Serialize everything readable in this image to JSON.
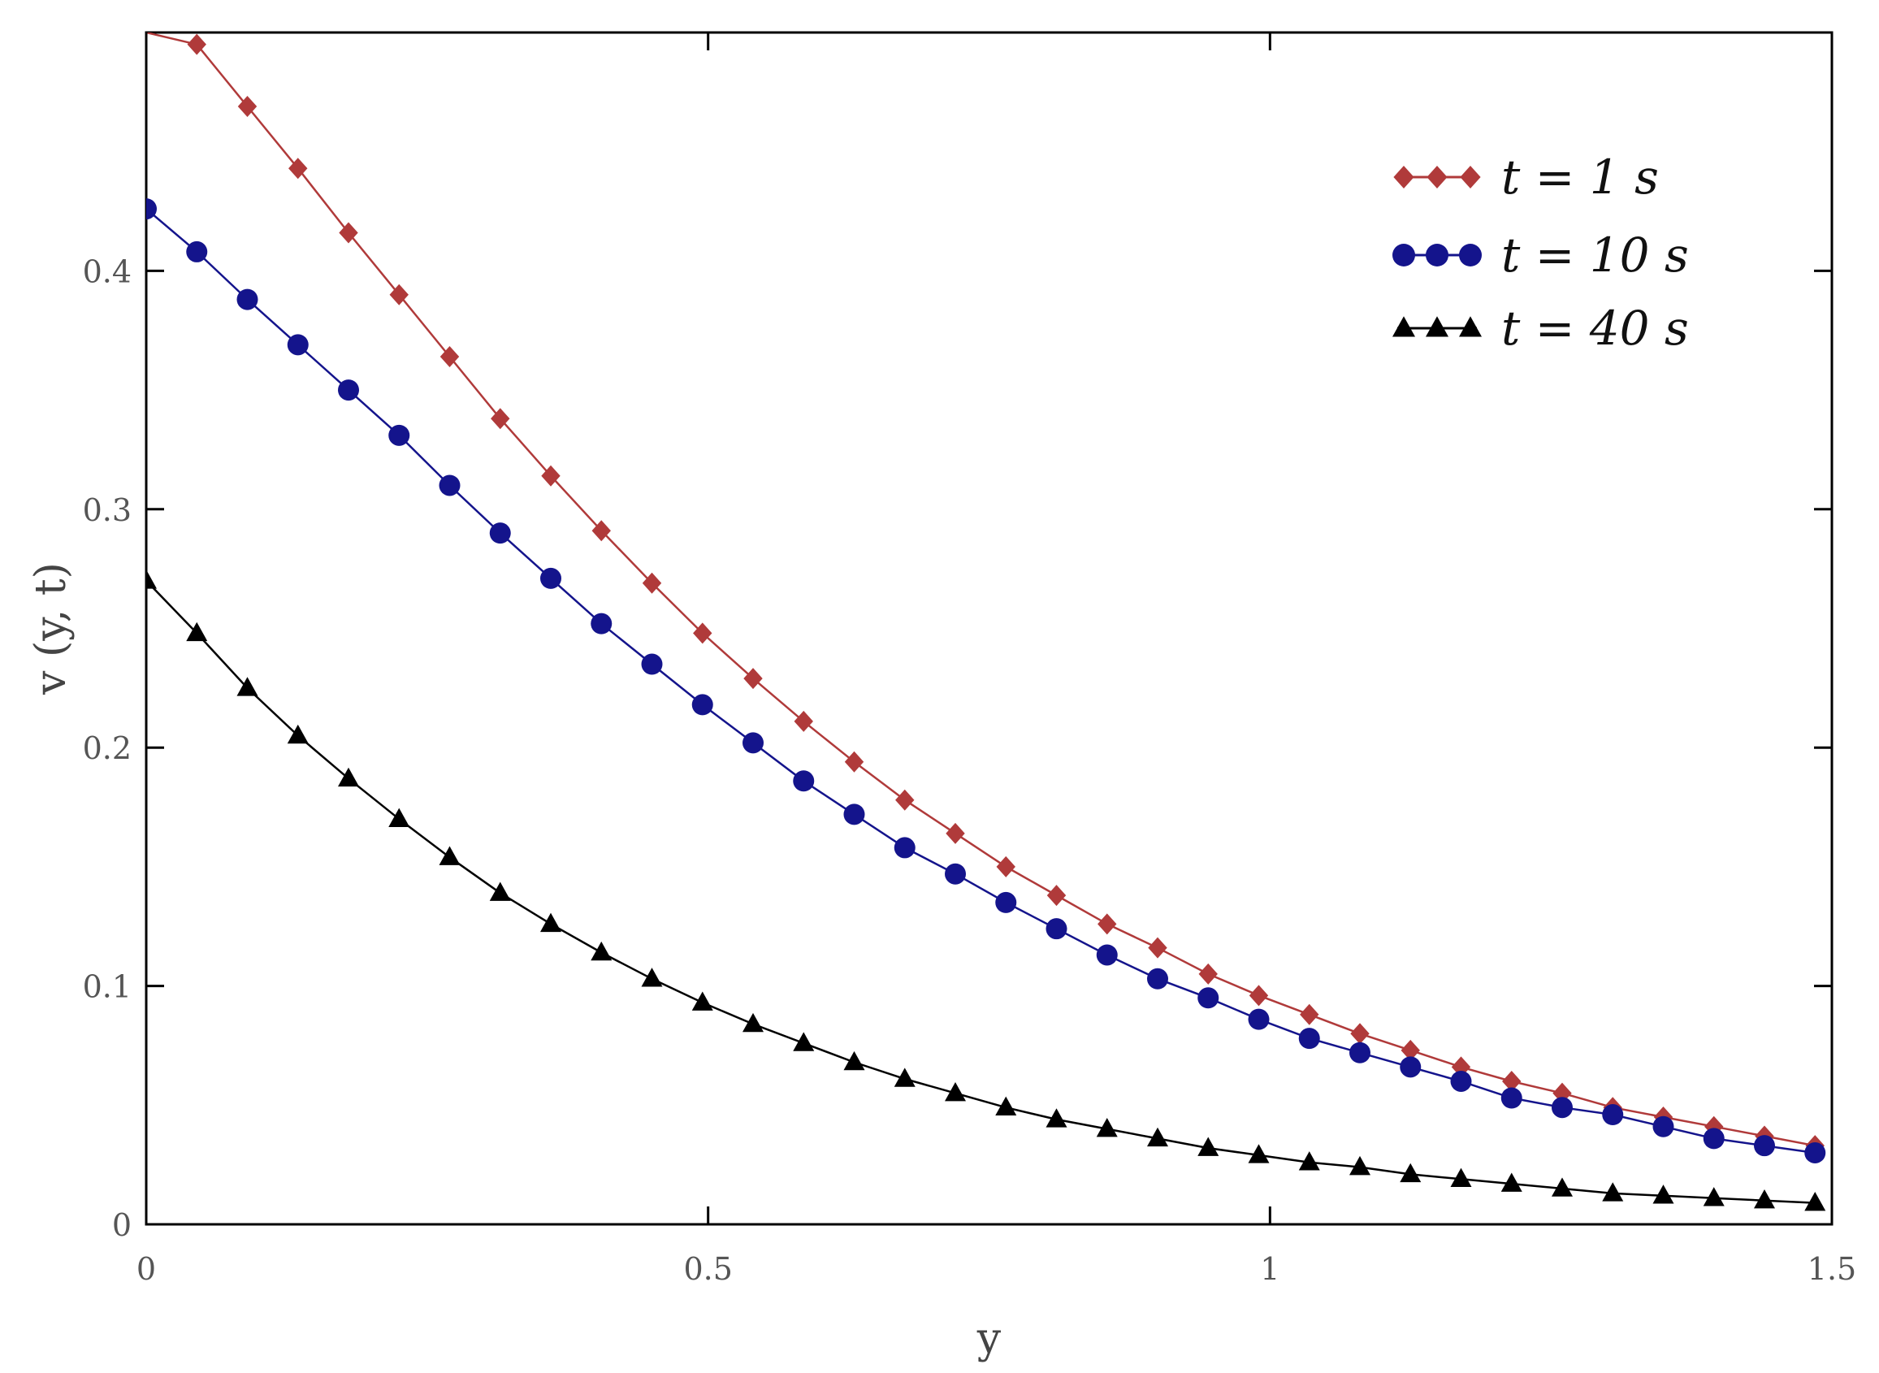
{
  "chart_data": {
    "type": "line",
    "xlabel": "y",
    "ylabel": "v (y, t)",
    "xlim": [
      0,
      1.5
    ],
    "ylim": [
      0,
      0.5
    ],
    "x_ticks": [
      0,
      0.5,
      1,
      1.5
    ],
    "x_tick_labels": [
      "0",
      "0.5",
      "1",
      "1.5"
    ],
    "y_ticks": [
      0,
      0.1,
      0.2,
      0.3,
      0.4
    ],
    "y_tick_labels": [
      "0",
      "0.1",
      "0.2",
      "0.3",
      "0.4"
    ],
    "grid": false,
    "legend_position": "top-right",
    "x": [
      0.0,
      0.045,
      0.09,
      0.135,
      0.18,
      0.225,
      0.27,
      0.315,
      0.36,
      0.405,
      0.45,
      0.495,
      0.54,
      0.585,
      0.63,
      0.675,
      0.72,
      0.765,
      0.81,
      0.855,
      0.9,
      0.945,
      0.99,
      1.035,
      1.08,
      1.125,
      1.17,
      1.215,
      1.26,
      1.305,
      1.35,
      1.395,
      1.44,
      1.485
    ],
    "series": [
      {
        "name": "t = 1 s",
        "marker": "diamond",
        "color": "#b03a3a",
        "values": [
          0.5,
          0.495,
          0.469,
          0.443,
          0.416,
          0.39,
          0.364,
          0.338,
          0.314,
          0.291,
          0.269,
          0.248,
          0.229,
          0.211,
          0.194,
          0.178,
          0.164,
          0.15,
          0.138,
          0.126,
          0.116,
          0.105,
          0.096,
          0.088,
          0.08,
          0.073,
          0.066,
          0.06,
          0.055,
          0.049,
          0.045,
          0.041,
          0.037,
          0.033
        ]
      },
      {
        "name": "t = 10 s",
        "marker": "circle",
        "color": "#14148c",
        "values": [
          0.426,
          0.408,
          0.388,
          0.369,
          0.35,
          0.331,
          0.31,
          0.29,
          0.271,
          0.252,
          0.235,
          0.218,
          0.202,
          0.186,
          0.172,
          0.158,
          0.147,
          0.135,
          0.124,
          0.113,
          0.103,
          0.095,
          0.086,
          0.078,
          0.072,
          0.066,
          0.06,
          0.053,
          0.049,
          0.046,
          0.041,
          0.036,
          0.033,
          0.03
        ]
      },
      {
        "name": "t = 40 s",
        "marker": "triangle",
        "color": "#000000",
        "values": [
          0.27,
          0.248,
          0.225,
          0.205,
          0.187,
          0.17,
          0.154,
          0.139,
          0.126,
          0.114,
          0.103,
          0.093,
          0.084,
          0.076,
          0.068,
          0.061,
          0.055,
          0.049,
          0.044,
          0.04,
          0.036,
          0.032,
          0.029,
          0.026,
          0.024,
          0.021,
          0.019,
          0.017,
          0.015,
          0.013,
          0.012,
          0.011,
          0.01,
          0.009
        ]
      }
    ]
  }
}
